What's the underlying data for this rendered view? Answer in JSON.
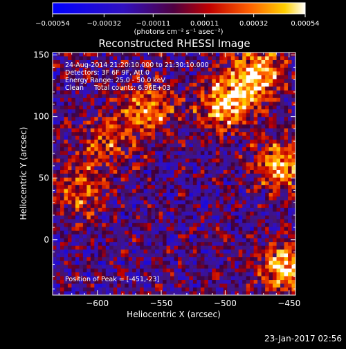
{
  "colorbar": {
    "tick_labels": [
      "-0.00054",
      "-0.00032",
      "-0.00011",
      "0.00011",
      "0.00032",
      "0.00054"
    ],
    "unit_label": "(photons cm⁻² s⁻¹ asec⁻²)"
  },
  "chart_data": {
    "type": "heatmap",
    "title": "Reconstructed RHESSI Image",
    "xlabel": "Heliocentric X (arcsec)",
    "ylabel": "Heliocentric Y (arcsec)",
    "xlim": [
      -635,
      -445
    ],
    "ylim": [
      -45,
      152
    ],
    "x_tick_values": [
      -600,
      -550,
      -500,
      -450
    ],
    "x_tick_labels": [
      "−600",
      "−550",
      "−500",
      "−450"
    ],
    "y_tick_values": [
      0,
      50,
      100,
      150
    ],
    "y_tick_labels": [
      "0",
      "50",
      "100",
      "150"
    ],
    "color_range": [
      -0.00054,
      0.00054
    ],
    "annotations": [
      "24-Aug-2014 21:20:10.000 to 21:30:10.000",
      "Detectors: 3F 6F 9F, Att 0",
      "Energy Range: 25.0 - 50.0 keV",
      "Clean     Total counts: 6.96E+03"
    ],
    "peak_label": "Position of Peak = [-451,-23]",
    "peak": [
      -451,
      -23
    ],
    "intensity_features": [
      {
        "x": -560,
        "y": 105,
        "level": 0.85
      },
      {
        "x": -500,
        "y": 110,
        "level": 0.95
      },
      {
        "x": -475,
        "y": 135,
        "level": 1.0
      },
      {
        "x": -455,
        "y": 60,
        "level": 0.9
      },
      {
        "x": -451,
        "y": -23,
        "level": 1.0
      },
      {
        "x": -615,
        "y": 40,
        "level": 0.75
      },
      {
        "x": -595,
        "y": 80,
        "level": 0.7
      }
    ]
  },
  "footer_timestamp": "23-Jan-2017 02:56"
}
